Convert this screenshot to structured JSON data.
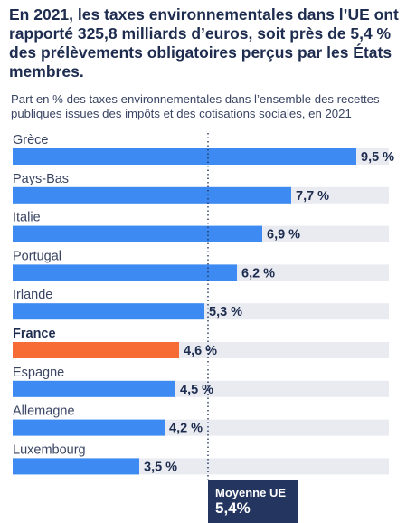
{
  "title": "En 2021, les taxes environnementales dans l’UE ont rapporté 325,8 milliards d’euros, soit près de 5,4 % des prélèvements obligatoires perçus par les États membres.",
  "subtitle": "Part en % des taxes environnementales dans l’ensemble des recettes publiques issues des impôts et des cotisations sociales, en 2021",
  "chart_data": {
    "type": "bar",
    "orientation": "horizontal",
    "categories": [
      "Grèce",
      "Pays-Bas",
      "Italie",
      "Portugal",
      "Irlande",
      "France",
      "Espagne",
      "Allemagne",
      "Luxembourg"
    ],
    "values": [
      9.5,
      7.7,
      6.9,
      6.2,
      5.3,
      4.6,
      4.5,
      4.2,
      3.5
    ],
    "value_labels": [
      "9,5 %",
      "7,7 %",
      "6,9 %",
      "6,2 %",
      "5,3 %",
      "4,6 %",
      "4,5 %",
      "4,2 %",
      "3,5 %"
    ],
    "highlight": "France",
    "xlim": [
      0,
      10.4
    ],
    "colors": {
      "bar": "#3c8af2",
      "highlight": "#f76b35",
      "track": "#e9ebf1",
      "average_box": "#24365f",
      "text": "#1e2d4f"
    },
    "reference_line": {
      "value": 5.4,
      "label": "Moyenne UE",
      "value_label": "5,4%",
      "style": "dotted"
    }
  }
}
